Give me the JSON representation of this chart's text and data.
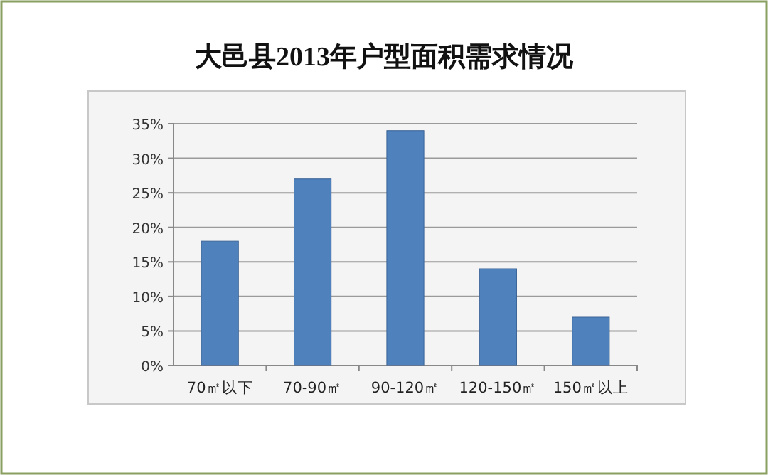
{
  "chart_data": {
    "type": "bar",
    "title": "大邑县2013年户型面积需求情况",
    "categories": [
      "70㎡以下",
      "70-90㎡",
      "90-120㎡",
      "120-150㎡",
      "150㎡以上"
    ],
    "values": [
      18,
      27,
      34,
      14,
      7
    ],
    "color": "#4f81bd",
    "ylim": [
      0,
      35
    ],
    "yticks": [
      {
        "value": 0,
        "label": "0%"
      },
      {
        "value": 5,
        "label": "5%"
      },
      {
        "value": 10,
        "label": "10%"
      },
      {
        "value": 15,
        "label": "15%"
      },
      {
        "value": 20,
        "label": "20%"
      },
      {
        "value": 25,
        "label": "25%"
      },
      {
        "value": 30,
        "label": "30%"
      },
      {
        "value": 35,
        "label": "35%"
      }
    ],
    "grid": "y"
  }
}
